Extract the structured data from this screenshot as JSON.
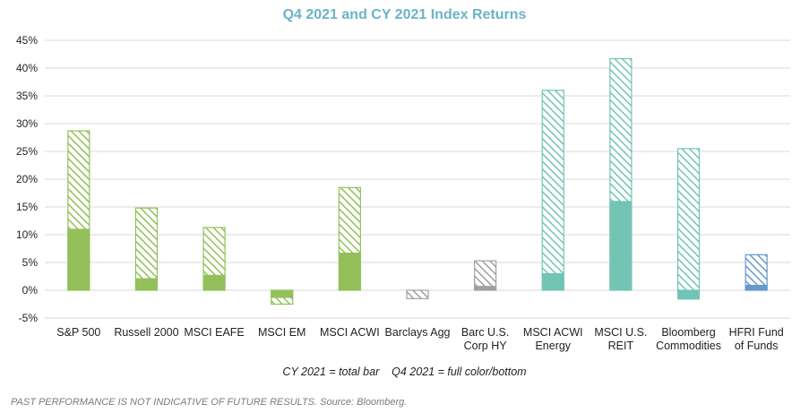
{
  "title": "Q4 2021 and CY 2021 Index Returns",
  "note": "CY 2021 = total bar    Q4 2021 = full color/bottom",
  "footnote": "PAST PERFORMANCE IS NOT INDICATIVE OF FUTURE RESULTS. Source: Bloomberg.",
  "chart_data": {
    "type": "bar",
    "title": "Q4 2021 and CY 2021 Index Returns",
    "xlabel": "",
    "ylabel": "",
    "ylim": [
      -5,
      45
    ],
    "yticks": [
      -5,
      0,
      5,
      10,
      15,
      20,
      25,
      30,
      35,
      40,
      45
    ],
    "ytick_labels": [
      "-5%",
      "0%",
      "5%",
      "10%",
      "15%",
      "20%",
      "25%",
      "30%",
      "35%",
      "40%",
      "45%"
    ],
    "grid": true,
    "categories": [
      [
        "S&P 500"
      ],
      [
        "Russell 2000"
      ],
      [
        "MSCI EAFE"
      ],
      [
        "MSCI EM"
      ],
      [
        "MSCI ACWI"
      ],
      [
        "Barclays Agg"
      ],
      [
        "Barc U.S.",
        "Corp HY"
      ],
      [
        "MSCI ACWI",
        "Energy"
      ],
      [
        "MSCI U.S.",
        "REIT"
      ],
      [
        "Bloomberg",
        "Commodities"
      ],
      [
        "HFRI Fund",
        "of Funds"
      ]
    ],
    "series": [
      {
        "name": "CY 2021",
        "values": [
          28.7,
          14.8,
          11.3,
          -2.5,
          18.5,
          -1.5,
          5.3,
          36.0,
          41.7,
          25.5,
          6.4
        ]
      },
      {
        "name": "Q4 2021",
        "values": [
          11.0,
          2.1,
          2.7,
          -1.3,
          6.7,
          0.0,
          0.7,
          3.0,
          16.0,
          -1.6,
          0.9
        ]
      }
    ],
    "colors": [
      "#93c05a",
      "#93c05a",
      "#93c05a",
      "#93c05a",
      "#93c05a",
      "#a0a0a0",
      "#a0a0a0",
      "#72c4b4",
      "#72c4b4",
      "#72c4b4",
      "#6699cc"
    ]
  }
}
